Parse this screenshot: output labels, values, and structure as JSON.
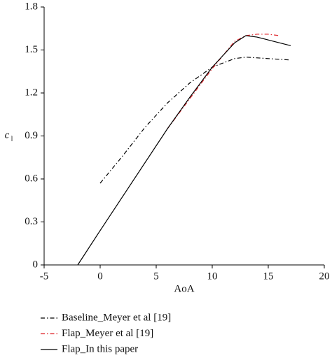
{
  "chart_data": {
    "type": "line",
    "x_label": "AoA",
    "y_label": "c",
    "y_label_sub": "l",
    "xlim": [
      -5,
      20
    ],
    "xticks": [
      -5,
      0,
      5,
      10,
      15,
      20
    ],
    "ylim": [
      0,
      1.8
    ],
    "yticks": [
      0,
      0.3,
      0.6,
      0.9,
      1.2,
      1.5,
      1.8
    ],
    "series": [
      {
        "name": "Baseline_Meyer et al [19]",
        "color": "#000000",
        "dash": "6,3,1.5,3",
        "x": [
          0,
          2,
          4,
          6,
          8,
          10,
          12,
          13,
          15,
          17
        ],
        "values": [
          0.57,
          0.76,
          0.96,
          1.13,
          1.27,
          1.38,
          1.44,
          1.45,
          1.44,
          1.43
        ]
      },
      {
        "name": "Flap_Meyer et al [19]",
        "color": "#e0282e",
        "dash": "6,3,1.5,3",
        "x": [
          6,
          8,
          10,
          12,
          13,
          14,
          15,
          16
        ],
        "values": [
          0.95,
          1.16,
          1.37,
          1.56,
          1.6,
          1.61,
          1.61,
          1.6
        ]
      },
      {
        "name": "Flap_In this paper",
        "color": "#000000",
        "dash": "none",
        "x": [
          -2,
          0,
          6,
          8,
          10,
          12,
          13,
          14,
          15,
          17
        ],
        "values": [
          0,
          0.24,
          0.95,
          1.17,
          1.38,
          1.55,
          1.6,
          1.59,
          1.57,
          1.53
        ]
      }
    ]
  }
}
